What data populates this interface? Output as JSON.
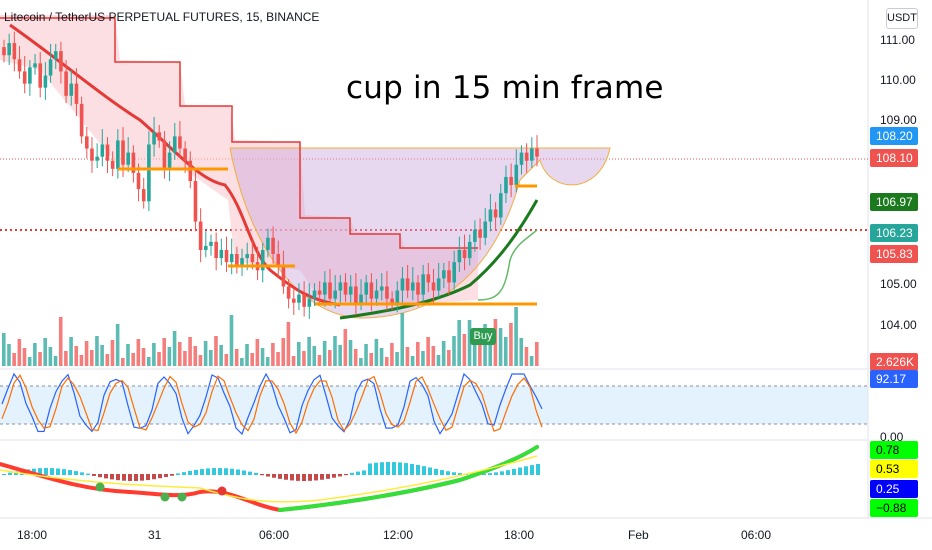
{
  "header": {
    "title": "Litecoin / TetherUS PERPETUAL FUTURES, 15, BINANCE"
  },
  "annotation": {
    "text": "cup in 15 min frame"
  },
  "price_axis": {
    "unit_label": "USDT",
    "labels": [
      "111.00",
      "110.00",
      "109.00",
      "105.00",
      "104.00"
    ]
  },
  "price_tags": [
    {
      "value": "108.20",
      "bg": "#2196f3",
      "fg": "#ffffff"
    },
    {
      "value": "108.10",
      "bg": "#ef5350",
      "fg": "#ffffff"
    },
    {
      "value": "106.97",
      "bg": "#1b7a1e",
      "fg": "#ffffff"
    },
    {
      "value": "106.23",
      "bg": "#26a69a",
      "fg": "#ffffff"
    },
    {
      "value": "105.83",
      "bg": "#ef5350",
      "fg": "#ffffff"
    },
    {
      "value": "2.626K",
      "bg": "#ef5350",
      "fg": "#ffffff"
    },
    {
      "value": "92.17",
      "bg": "#2962ff",
      "fg": "#ffffff"
    }
  ],
  "stoch_axis": {
    "label": "0.00"
  },
  "osc_tags": [
    {
      "value": "0.78",
      "bg": "#00ff00",
      "fg": "#000000"
    },
    {
      "value": "0.53",
      "bg": "#ffff00",
      "fg": "#000000"
    },
    {
      "value": "0.25",
      "bg": "#0000ff",
      "fg": "#ffffff"
    },
    {
      "value": "−0.88",
      "bg": "#00ff00",
      "fg": "#000000"
    }
  ],
  "time_axis": {
    "labels": [
      "18:00",
      "31",
      "06:00",
      "12:00",
      "18:00",
      "Feb",
      "06:00"
    ]
  },
  "signal": {
    "label": "Buy"
  },
  "colors": {
    "up": "#26a69a",
    "down": "#ef5350",
    "ma": "#e53935",
    "green_ma": "#1b7a1e",
    "support": "#ff9800",
    "cup": "#c9a6dc",
    "stoch_k": "#2962ff",
    "stoch_d": "#ff6d00"
  },
  "chart_data": {
    "type": "candlestick",
    "title": "Litecoin / TetherUS PERPETUAL FUTURES, 15, BINANCE",
    "symbol": "Litecoin / TetherUS PERPETUAL FUTURES",
    "interval": "15",
    "exchange": "BINANCE",
    "x_ticks": [
      "18:00",
      "31",
      "06:00",
      "12:00",
      "18:00",
      "Feb",
      "06:00"
    ],
    "y_ticks": [
      111.0,
      110.0,
      109.0,
      105.0,
      104.0
    ],
    "y_range": [
      103.3,
      111.7
    ],
    "last_price": 108.1,
    "close": [
      110.6,
      110.9,
      110.5,
      110.2,
      109.9,
      110.3,
      110.4,
      109.8,
      110.1,
      110.5,
      110.7,
      110.2,
      109.6,
      109.9,
      109.4,
      108.6,
      108.3,
      108.0,
      108.1,
      108.4,
      108.0,
      107.8,
      108.5,
      107.9,
      108.2,
      107.7,
      107.3,
      107.0,
      108.4,
      108.7,
      108.5,
      107.8,
      108.2,
      108.6,
      108.3,
      108.0,
      107.5,
      106.5,
      105.8,
      105.9,
      106.0,
      105.6,
      105.8,
      105.5,
      105.7,
      105.4,
      105.6,
      105.7,
      105.5,
      105.3,
      105.8,
      106.1,
      105.7,
      105.4,
      104.9,
      104.6,
      104.5,
      104.7,
      104.4,
      104.6,
      104.8,
      104.7,
      105.0,
      104.6,
      104.8,
      105.0,
      104.7,
      104.9,
      104.5,
      104.7,
      105.0,
      104.6,
      104.8,
      104.9,
      104.6,
      104.5,
      104.8,
      105.1,
      104.8,
      105.0,
      104.7,
      105.2,
      105.0,
      104.8,
      105.1,
      105.3,
      105.0,
      105.5,
      105.8,
      105.6,
      106.0,
      106.3,
      106.1,
      106.5,
      106.8,
      106.6,
      107.2,
      107.6,
      107.4,
      107.9,
      108.2,
      108.0,
      108.3,
      108.1
    ]
  }
}
